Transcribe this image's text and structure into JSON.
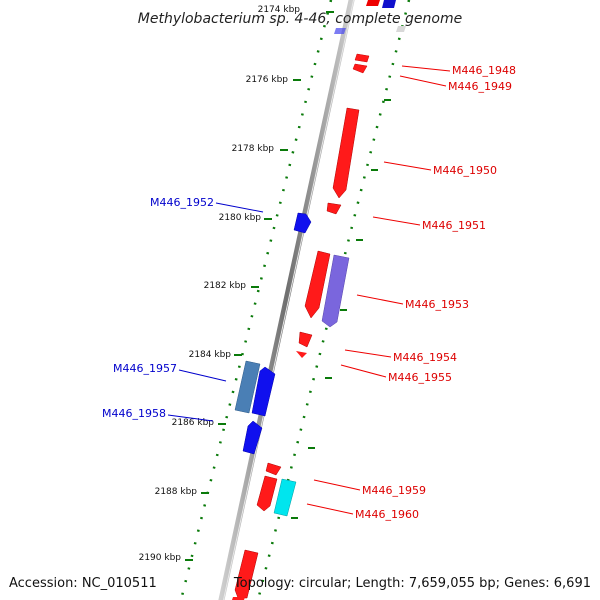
{
  "title": "Methylobacterium sp. 4-46, complete genome",
  "footer": {
    "accession": "Accession: NC_010511",
    "summary": "Topology: circular; Length: 7,659,055 bp; Genes: 6,691"
  },
  "colors": {
    "forward": "#ff0000",
    "reverse": "#0000ff",
    "rrna": "#7766dd",
    "steel": "#4a7fb5",
    "cyan": "#00e5ee",
    "backbone": "#888888",
    "ticks": "#0a7a0a"
  },
  "ticks": [
    {
      "label": "2174 kbp",
      "kbp": 2174
    },
    {
      "label": "2176 kbp",
      "kbp": 2176
    },
    {
      "label": "2178 kbp",
      "kbp": 2178
    },
    {
      "label": "2180 kbp",
      "kbp": 2180
    },
    {
      "label": "2182 kbp",
      "kbp": 2182
    },
    {
      "label": "2184 kbp",
      "kbp": 2184
    },
    {
      "label": "2186 kbp",
      "kbp": 2186
    },
    {
      "label": "2188 kbp",
      "kbp": 2188
    },
    {
      "label": "2190 kbp",
      "kbp": 2190
    }
  ],
  "genes": [
    {
      "label": "M446_1948",
      "strand": "+"
    },
    {
      "label": "M446_1949",
      "strand": "+"
    },
    {
      "label": "M446_1950",
      "strand": "+"
    },
    {
      "label": "M446_1951",
      "strand": "+"
    },
    {
      "label": "M446_1952",
      "strand": "-"
    },
    {
      "label": "M446_1953",
      "strand": "+"
    },
    {
      "label": "M446_1954",
      "strand": "+"
    },
    {
      "label": "M446_1955",
      "strand": "+"
    },
    {
      "label": "M446_1957",
      "strand": "-"
    },
    {
      "label": "M446_1958",
      "strand": "-"
    },
    {
      "label": "M446_1959",
      "strand": "+"
    },
    {
      "label": "M446_1960",
      "strand": "+"
    }
  ]
}
